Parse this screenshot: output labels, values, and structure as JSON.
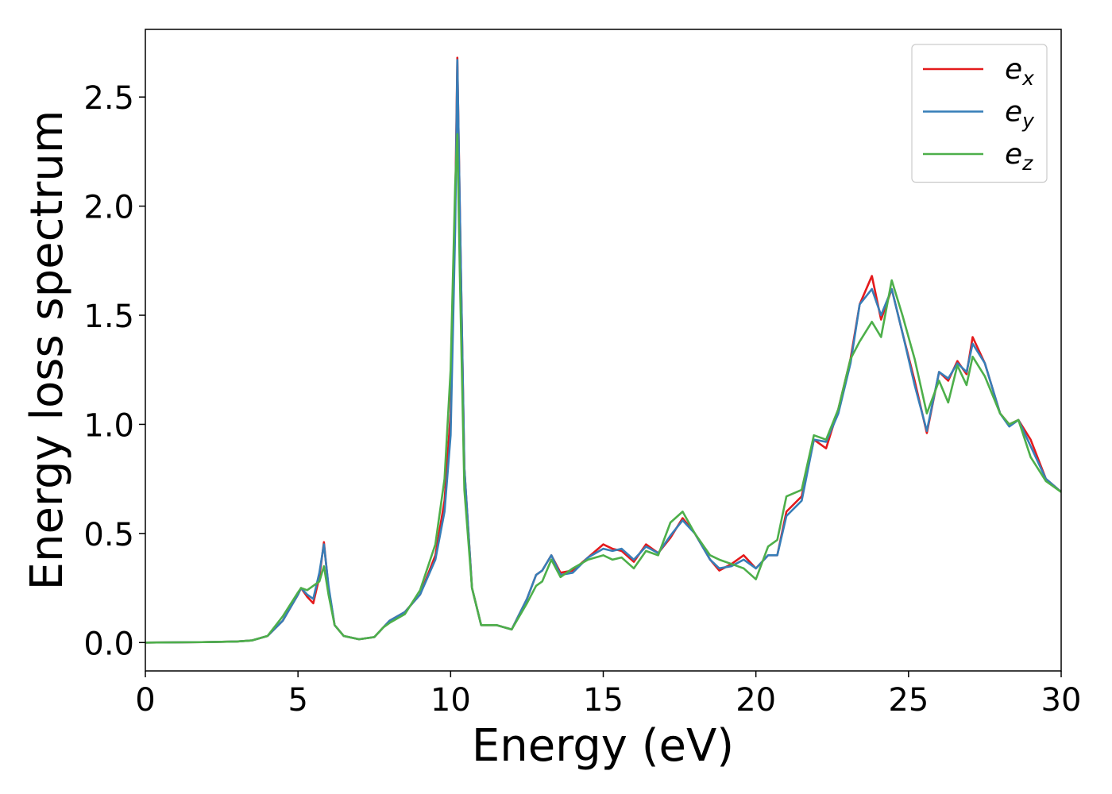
{
  "chart_data": {
    "type": "line",
    "xlabel": "Energy (eV)",
    "ylabel": "Energy loss spectrum",
    "xlim": [
      0,
      30
    ],
    "ylim": [
      -0.13,
      2.81
    ],
    "xticks": [
      0,
      5,
      10,
      15,
      20,
      25,
      30
    ],
    "yticks": [
      {
        "value": 0,
        "label": "0.0"
      },
      0.5,
      {
        "value": 1,
        "label": "1.0"
      },
      1.5,
      {
        "value": 2,
        "label": "2.0"
      },
      2.5
    ],
    "legend": "upper right",
    "grid": false,
    "x": [
      0,
      2,
      3,
      3.5,
      4,
      4.5,
      5.0,
      5.1,
      5.3,
      5.5,
      5.7,
      5.85,
      6.0,
      6.2,
      6.5,
      7.0,
      7.5,
      7.8,
      8.0,
      8.5,
      9.0,
      9.5,
      9.8,
      10.0,
      10.15,
      10.22,
      10.3,
      10.45,
      10.7,
      11.0,
      11.5,
      12.0,
      12.5,
      12.8,
      13.0,
      13.3,
      13.6,
      14.0,
      14.5,
      15.0,
      15.3,
      15.6,
      16.0,
      16.4,
      16.8,
      17.2,
      17.6,
      18.0,
      18.5,
      18.8,
      19.2,
      19.6,
      20.0,
      20.4,
      20.7,
      21.0,
      21.5,
      21.9,
      22.3,
      22.7,
      23.1,
      23.4,
      23.8,
      24.1,
      24.45,
      24.8,
      25.2,
      25.6,
      26.0,
      26.3,
      26.6,
      26.9,
      27.1,
      27.5,
      28.0,
      28.3,
      28.6,
      29.0,
      29.5,
      30.0
    ],
    "series": [
      {
        "name": "e_x",
        "color": "#e41a1c",
        "values": [
          0,
          0.002,
          0.005,
          0.01,
          0.03,
          0.1,
          0.22,
          0.25,
          0.21,
          0.18,
          0.3,
          0.46,
          0.25,
          0.08,
          0.03,
          0.015,
          0.025,
          0.07,
          0.1,
          0.14,
          0.22,
          0.4,
          0.65,
          1.05,
          2.0,
          2.68,
          2.0,
          0.8,
          0.25,
          0.08,
          0.08,
          0.06,
          0.2,
          0.31,
          0.33,
          0.4,
          0.32,
          0.33,
          0.39,
          0.45,
          0.43,
          0.42,
          0.37,
          0.45,
          0.41,
          0.48,
          0.57,
          0.5,
          0.38,
          0.33,
          0.36,
          0.4,
          0.34,
          0.4,
          0.4,
          0.6,
          0.67,
          0.93,
          0.89,
          1.07,
          1.3,
          1.55,
          1.68,
          1.48,
          1.62,
          1.42,
          1.2,
          0.96,
          1.24,
          1.2,
          1.29,
          1.23,
          1.4,
          1.28,
          1.05,
          1.0,
          1.02,
          0.93,
          0.75,
          0.69
        ]
      },
      {
        "name": "e_y",
        "color": "#377eb8",
        "values": [
          0,
          0.002,
          0.005,
          0.01,
          0.03,
          0.1,
          0.22,
          0.25,
          0.22,
          0.2,
          0.32,
          0.45,
          0.26,
          0.08,
          0.03,
          0.015,
          0.025,
          0.07,
          0.1,
          0.14,
          0.22,
          0.38,
          0.6,
          0.95,
          1.9,
          2.67,
          2.0,
          0.8,
          0.25,
          0.08,
          0.08,
          0.06,
          0.2,
          0.31,
          0.33,
          0.4,
          0.31,
          0.32,
          0.39,
          0.43,
          0.42,
          0.43,
          0.38,
          0.44,
          0.41,
          0.49,
          0.56,
          0.5,
          0.38,
          0.34,
          0.35,
          0.38,
          0.34,
          0.4,
          0.4,
          0.58,
          0.65,
          0.93,
          0.92,
          1.05,
          1.28,
          1.55,
          1.62,
          1.5,
          1.62,
          1.42,
          1.18,
          0.97,
          1.24,
          1.21,
          1.28,
          1.24,
          1.37,
          1.28,
          1.05,
          0.99,
          1.02,
          0.9,
          0.75,
          0.69
        ]
      },
      {
        "name": "e_z",
        "color": "#4daf4a",
        "values": [
          0,
          0.002,
          0.005,
          0.01,
          0.03,
          0.12,
          0.23,
          0.25,
          0.24,
          0.26,
          0.28,
          0.35,
          0.22,
          0.08,
          0.03,
          0.015,
          0.025,
          0.07,
          0.09,
          0.13,
          0.24,
          0.45,
          0.75,
          1.25,
          2.1,
          2.33,
          1.7,
          0.7,
          0.25,
          0.08,
          0.08,
          0.06,
          0.18,
          0.26,
          0.28,
          0.38,
          0.3,
          0.34,
          0.38,
          0.4,
          0.38,
          0.39,
          0.34,
          0.42,
          0.4,
          0.55,
          0.6,
          0.5,
          0.4,
          0.38,
          0.36,
          0.34,
          0.29,
          0.44,
          0.47,
          0.67,
          0.7,
          0.95,
          0.93,
          1.07,
          1.3,
          1.38,
          1.47,
          1.4,
          1.66,
          1.5,
          1.3,
          1.05,
          1.2,
          1.1,
          1.27,
          1.18,
          1.31,
          1.22,
          1.05,
          1.0,
          1.02,
          0.85,
          0.74,
          0.69
        ]
      }
    ]
  }
}
